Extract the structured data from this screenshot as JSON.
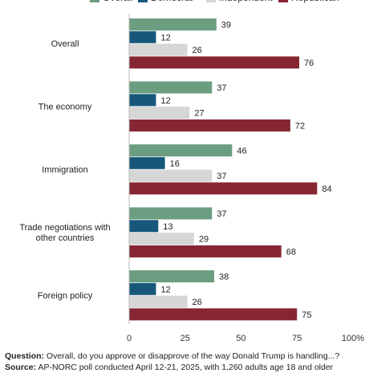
{
  "chart_data": {
    "type": "bar",
    "orientation": "horizontal",
    "categories": [
      "Overall",
      "The economy",
      "Immigration",
      "Trade negotiations with other countries",
      "Foreign policy"
    ],
    "series": [
      {
        "name": "Overall",
        "color": "#6b9e80",
        "values": [
          39,
          37,
          46,
          37,
          38
        ]
      },
      {
        "name": "Democrat",
        "color": "#17587a",
        "values": [
          12,
          12,
          16,
          13,
          12
        ]
      },
      {
        "name": "Independent",
        "color": "#d6d6d6",
        "values": [
          26,
          27,
          37,
          29,
          26
        ]
      },
      {
        "name": "Republican",
        "color": "#862633",
        "values": [
          76,
          72,
          84,
          68,
          75
        ]
      }
    ],
    "xlim": [
      0,
      100
    ],
    "xticks": [
      "0",
      "25",
      "50",
      "75",
      "100%"
    ],
    "legend_position": "top",
    "grid": false
  },
  "footer": {
    "question_label": "Question:",
    "question_text": "Overall, do you approve or disapprove of the way Donald Trump is handling...?",
    "source_label": "Source:",
    "source_text": "AP-NORC poll conducted April 12-21, 2025, with 1,260 adults age 18 and older"
  }
}
